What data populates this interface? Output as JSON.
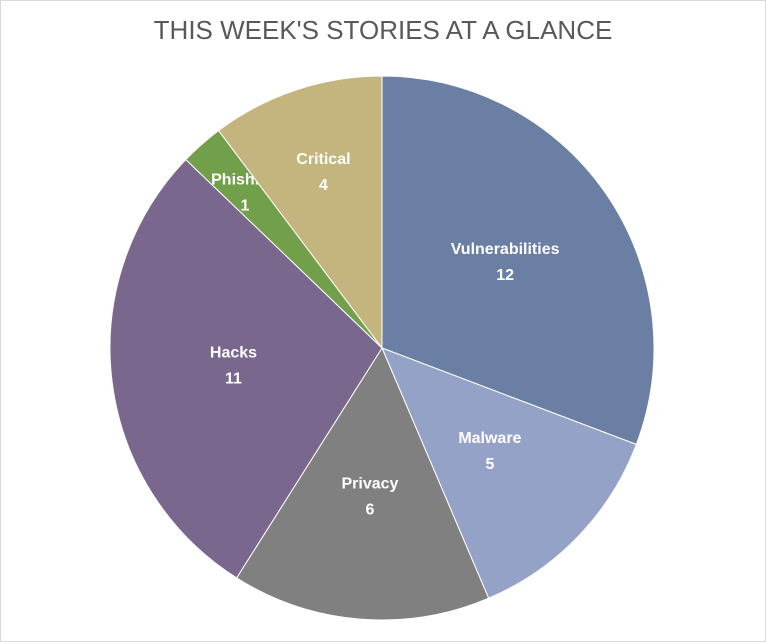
{
  "chart_data": {
    "type": "pie",
    "title": "THIS WEEK'S STORIES AT A GLANCE",
    "categories": [
      "Vulnerabilities",
      "Malware",
      "Privacy",
      "Hacks",
      "Phishing",
      "Critical"
    ],
    "values": [
      12,
      5,
      6,
      11,
      1,
      4
    ],
    "colors": [
      "#6a7fa3",
      "#94a2c8",
      "#808080",
      "#7a678e",
      "#72a04a",
      "#c4b47e"
    ]
  }
}
